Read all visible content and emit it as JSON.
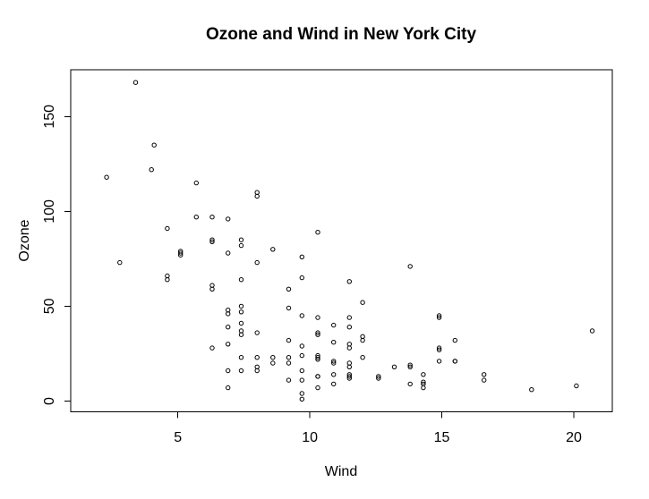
{
  "title": "Ozone and Wind in New York City",
  "chart_data": {
    "type": "scatter",
    "title": "Ozone and Wind in New York City",
    "xlabel": "Wind",
    "ylabel": "Ozone",
    "xlim": [
      0.94,
      21.46
    ],
    "ylim": [
      -5.68,
      174.68
    ],
    "x_ticks": [
      {
        "value": 5,
        "label": "5"
      },
      {
        "value": 10,
        "label": "10"
      },
      {
        "value": 15,
        "label": "15"
      },
      {
        "value": 20,
        "label": "20"
      }
    ],
    "y_ticks": [
      {
        "value": 0,
        "label": "0"
      },
      {
        "value": 50,
        "label": "50"
      },
      {
        "value": 100,
        "label": "100"
      },
      {
        "value": 150,
        "label": "150"
      }
    ],
    "grid": false,
    "legend": "none",
    "marker": "open-circle",
    "point_color": "#000000",
    "frame_color": "#000000",
    "background_color": "#ffffff",
    "points": [
      [
        7.4,
        41
      ],
      [
        8,
        36
      ],
      [
        12.6,
        12
      ],
      [
        11.5,
        18
      ],
      [
        14.9,
        28
      ],
      [
        8.6,
        23
      ],
      [
        13.8,
        19
      ],
      [
        20.1,
        8
      ],
      [
        6.9,
        7
      ],
      [
        9.7,
        16
      ],
      [
        9.2,
        11
      ],
      [
        10.9,
        14
      ],
      [
        13.2,
        18
      ],
      [
        11.5,
        14
      ],
      [
        12,
        34
      ],
      [
        18.4,
        6
      ],
      [
        11.5,
        30
      ],
      [
        9.7,
        11
      ],
      [
        9.7,
        1
      ],
      [
        16.6,
        11
      ],
      [
        9.7,
        4
      ],
      [
        12,
        32
      ],
      [
        12,
        23
      ],
      [
        14.9,
        45
      ],
      [
        5.7,
        115
      ],
      [
        7.4,
        37
      ],
      [
        9.7,
        29
      ],
      [
        13.8,
        71
      ],
      [
        11.5,
        39
      ],
      [
        8,
        23
      ],
      [
        14.9,
        21
      ],
      [
        20.7,
        37
      ],
      [
        9.2,
        20
      ],
      [
        11.5,
        12
      ],
      [
        10.3,
        13
      ],
      [
        4.1,
        135
      ],
      [
        9.2,
        49
      ],
      [
        9.2,
        32
      ],
      [
        4.6,
        64
      ],
      [
        10.9,
        40
      ],
      [
        5.1,
        77
      ],
      [
        6.3,
        97
      ],
      [
        5.7,
        97
      ],
      [
        7.4,
        85
      ],
      [
        14.3,
        10
      ],
      [
        14.9,
        27
      ],
      [
        14.3,
        7
      ],
      [
        6.9,
        48
      ],
      [
        10.3,
        35
      ],
      [
        6.3,
        61
      ],
      [
        5.1,
        79
      ],
      [
        11.5,
        63
      ],
      [
        6.9,
        16
      ],
      [
        8.6,
        80
      ],
      [
        8,
        108
      ],
      [
        8.6,
        20
      ],
      [
        12,
        52
      ],
      [
        7.4,
        82
      ],
      [
        7.4,
        50
      ],
      [
        7.4,
        64
      ],
      [
        9.2,
        59
      ],
      [
        6.9,
        39
      ],
      [
        13.8,
        9
      ],
      [
        7.4,
        16
      ],
      [
        6.9,
        78
      ],
      [
        7.4,
        35
      ],
      [
        4.6,
        66
      ],
      [
        4,
        122
      ],
      [
        10.3,
        89
      ],
      [
        8,
        110
      ],
      [
        11.5,
        44
      ],
      [
        11.5,
        28
      ],
      [
        9.7,
        65
      ],
      [
        10.3,
        22
      ],
      [
        6.3,
        59
      ],
      [
        7.4,
        23
      ],
      [
        10.9,
        31
      ],
      [
        10.3,
        44
      ],
      [
        15.5,
        21
      ],
      [
        14.3,
        9
      ],
      [
        9.7,
        45
      ],
      [
        3.4,
        168
      ],
      [
        8,
        73
      ],
      [
        9.7,
        76
      ],
      [
        2.3,
        118
      ],
      [
        6.3,
        84
      ],
      [
        6.3,
        85
      ],
      [
        6.9,
        96
      ],
      [
        5.1,
        78
      ],
      [
        2.8,
        73
      ],
      [
        4.6,
        91
      ],
      [
        7.4,
        47
      ],
      [
        15.5,
        32
      ],
      [
        10.9,
        20
      ],
      [
        10.3,
        23
      ],
      [
        10.9,
        21
      ],
      [
        9.7,
        24
      ],
      [
        14.9,
        44
      ],
      [
        15.5,
        21
      ],
      [
        6.3,
        28
      ],
      [
        10.9,
        9
      ],
      [
        11.5,
        13
      ],
      [
        6.9,
        46
      ],
      [
        13.8,
        18
      ],
      [
        10.3,
        13
      ],
      [
        10.3,
        24
      ],
      [
        8,
        16
      ],
      [
        12.6,
        13
      ],
      [
        9.2,
        23
      ],
      [
        10.3,
        36
      ],
      [
        10.3,
        7
      ],
      [
        16.6,
        14
      ],
      [
        6.9,
        30
      ],
      [
        14.3,
        14
      ],
      [
        8,
        18
      ],
      [
        11.5,
        20
      ]
    ]
  }
}
